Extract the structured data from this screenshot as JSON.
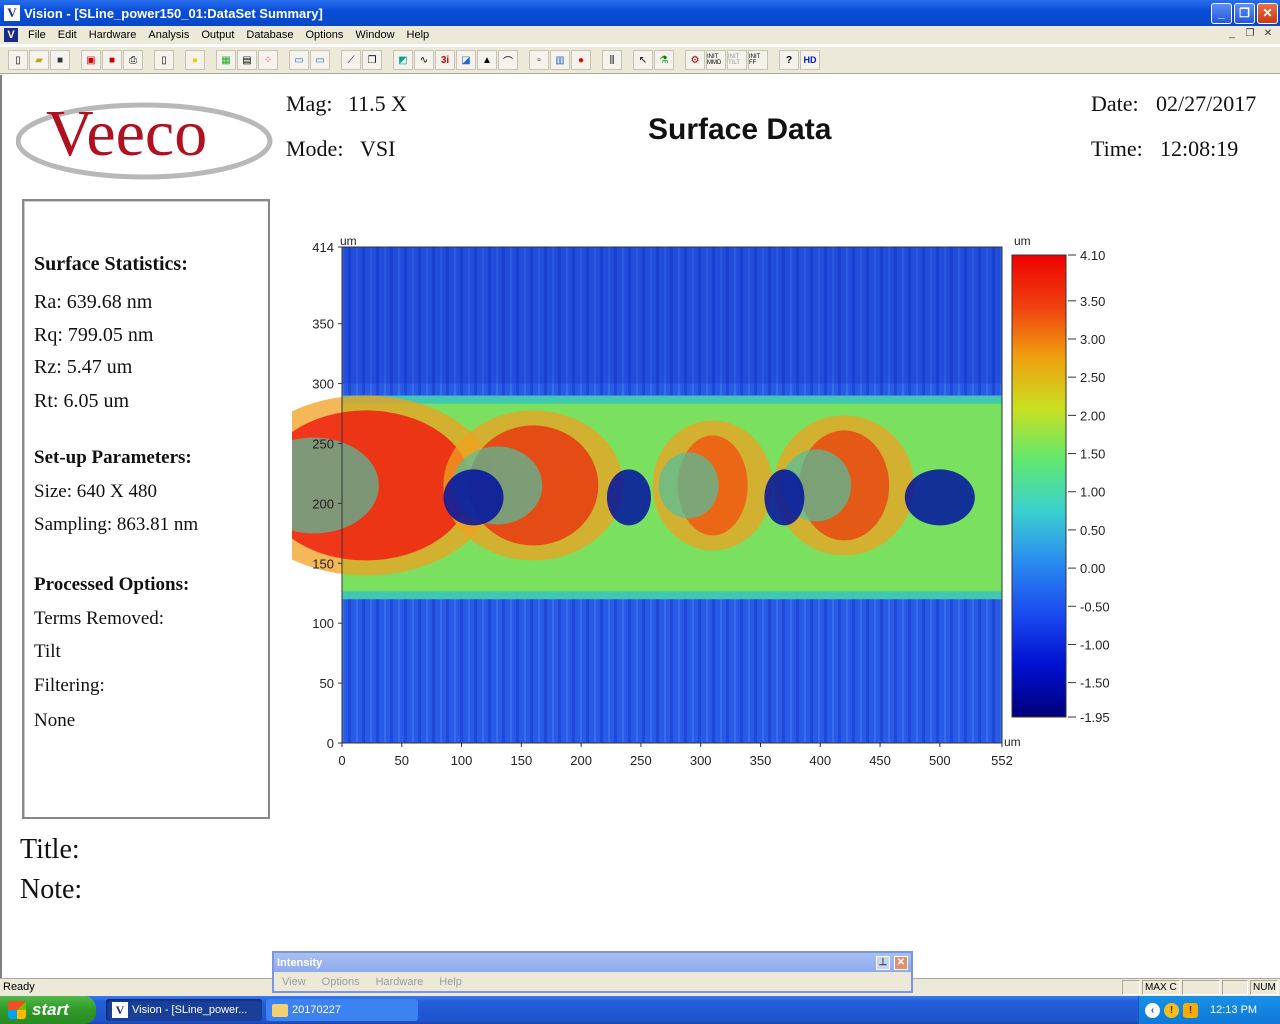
{
  "window": {
    "title": "Vision - [SLine_power150_01:DataSet Summary]",
    "app_icon": "V"
  },
  "menubar": {
    "items": [
      "File",
      "Edit",
      "Hardware",
      "Analysis",
      "Output",
      "Database",
      "Options",
      "Window",
      "Help"
    ]
  },
  "toolbar": {
    "hd_label": "HD",
    "help_label": "?",
    "init_labels": [
      "INIT MMD",
      "INIT TILT",
      "INIT FF"
    ]
  },
  "report": {
    "logo_text": "Veeco",
    "mag_label": "Mag:",
    "mag_value": "11.5 X",
    "mode_label": "Mode:",
    "mode_value": "VSI",
    "title": "Surface Data",
    "date_label": "Date:",
    "date_value": "02/27/2017",
    "time_label": "Time:",
    "time_value": "12:08:19",
    "title_label": "Title:",
    "note_label": "Note:"
  },
  "stats": {
    "surface_heading": "Surface Statistics:",
    "ra": "Ra:  639.68 nm",
    "rq": "Rq:  799.05 nm",
    "rz": "Rz:  5.47 um",
    "rt": "Rt:  6.05 um",
    "setup_heading": "Set-up Parameters:",
    "size": "Size: 640 X 480",
    "sampling": "Sampling:  863.81 nm",
    "processed_heading": "Processed Options:",
    "terms_label": "Terms Removed:",
    "terms_value": "Tilt",
    "filter_label": "Filtering:",
    "filter_value": "None"
  },
  "chart_data": {
    "type": "heatmap",
    "x_unit": "um",
    "y_unit": "um",
    "z_unit": "um",
    "xlim": [
      0,
      552
    ],
    "ylim": [
      0,
      414
    ],
    "x_ticks": [
      "0",
      "50",
      "100",
      "150",
      "200",
      "250",
      "300",
      "350",
      "400",
      "450",
      "500",
      "552"
    ],
    "y_ticks": [
      "0",
      "50",
      "100",
      "150",
      "200",
      "250",
      "300",
      "350",
      "414"
    ],
    "colorbar_ticks": [
      "4.10",
      "3.50",
      "3.00",
      "2.50",
      "2.00",
      "1.50",
      "1.00",
      "0.50",
      "0.00",
      "-0.50",
      "-1.00",
      "-1.50",
      "-1.95"
    ],
    "zlim": [
      -1.95,
      4.1
    ],
    "colormap": [
      "#00007a",
      "#0010d0",
      "#1a4af0",
      "#2a8af0",
      "#3ad0d0",
      "#60e870",
      "#c8e020",
      "#f0a010",
      "#f04010",
      "#f00000"
    ],
    "stripe_y_range": [
      120,
      290
    ],
    "background_level": -0.5
  },
  "status": {
    "text": "Ready",
    "cells": [
      "",
      "MAX C",
      "",
      "",
      "NUM"
    ]
  },
  "intensity_window": {
    "title": "Intensity",
    "menu": [
      "View",
      "Options",
      "Hardware",
      "Help"
    ]
  },
  "taskbar": {
    "start_label": "start",
    "tasks": [
      "Vision - [SLine_power...",
      "20170227"
    ],
    "clock": "12:13 PM"
  }
}
